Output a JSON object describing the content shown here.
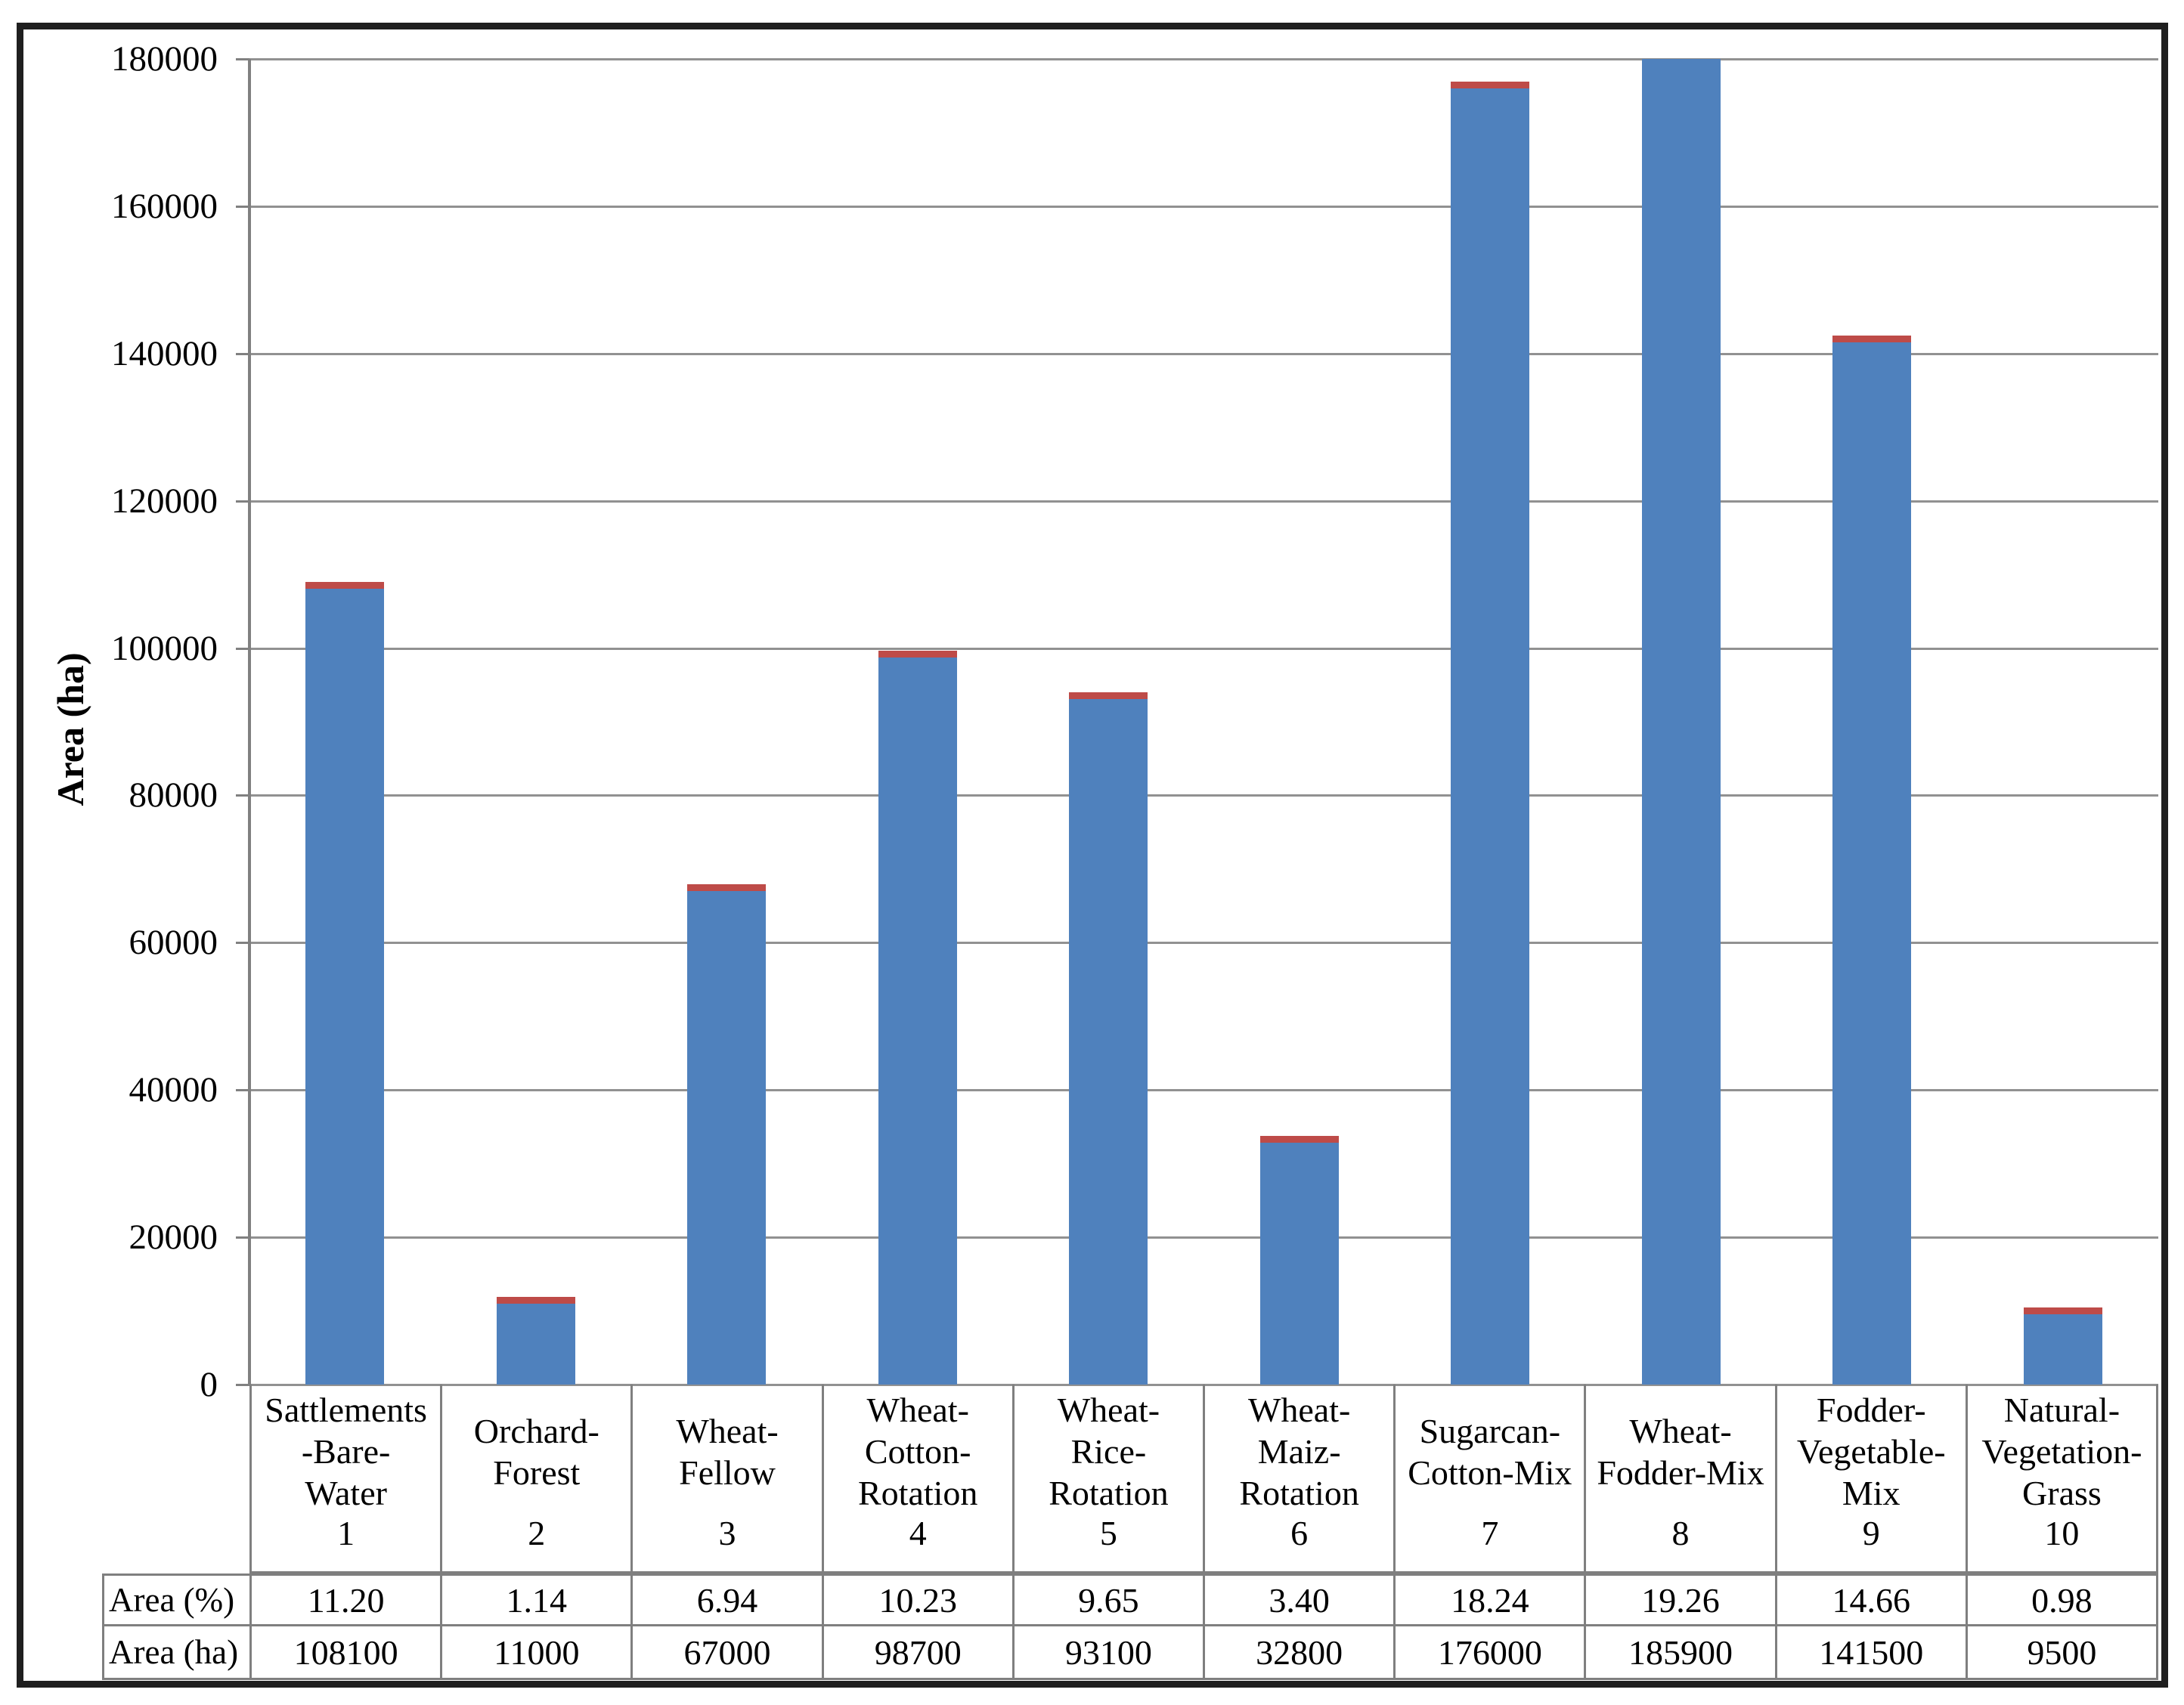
{
  "chart_data": {
    "type": "bar",
    "title": "",
    "ylabel": "Area (ha)",
    "xlabel": "",
    "ylim": [
      0,
      180000
    ],
    "ytick_step": 20000,
    "ytick_labels": [
      "180000",
      "160000",
      "140000",
      "120000",
      "100000",
      "80000",
      "60000",
      "40000",
      "20000",
      "0"
    ],
    "grid": true,
    "legend": "none",
    "categories": [
      {
        "lines": [
          "Sattlements",
          "-Bare-",
          "Water"
        ],
        "number": "1"
      },
      {
        "lines": [
          "Orchard-",
          "Forest"
        ],
        "number": "2"
      },
      {
        "lines": [
          "Wheat-",
          "Fellow"
        ],
        "number": "3"
      },
      {
        "lines": [
          "Wheat-",
          "Cotton-",
          "Rotation"
        ],
        "number": "4"
      },
      {
        "lines": [
          "Wheat-",
          "Rice-",
          "Rotation"
        ],
        "number": "5"
      },
      {
        "lines": [
          "Wheat-",
          "Maiz-",
          "Rotation"
        ],
        "number": "6"
      },
      {
        "lines": [
          "Sugarcan-",
          "Cotton-Mix"
        ],
        "number": "7"
      },
      {
        "lines": [
          "Wheat-",
          "Fodder-Mix"
        ],
        "number": "8"
      },
      {
        "lines": [
          "Fodder-",
          "Vegetable-",
          "Mix"
        ],
        "number": "9"
      },
      {
        "lines": [
          "Natural-",
          "Vegetation-",
          "Grass"
        ],
        "number": "10"
      }
    ],
    "series": [
      {
        "name": "Area (ha)",
        "values": [
          108100,
          11000,
          67000,
          98700,
          93100,
          32800,
          176000,
          185900,
          141500,
          9500
        ],
        "color": "#4F81BD"
      },
      {
        "name": "top-cap",
        "description": "thin red segment capping the top of each bar that fits inside the axis",
        "color": "#BE4B48"
      }
    ],
    "table": {
      "rows": [
        {
          "header": "Area (%)",
          "values": [
            "11.20",
            "1.14",
            "6.94",
            "10.23",
            "9.65",
            "3.40",
            "18.24",
            "19.26",
            "14.66",
            "0.98"
          ]
        },
        {
          "header": "Area (ha)",
          "values": [
            "108100",
            "11000",
            "67000",
            "98700",
            "93100",
            "32800",
            "176000",
            "185900",
            "141500",
            "9500"
          ]
        }
      ]
    },
    "colors": {
      "bar": "#4F81BD",
      "cap": "#BE4B48",
      "gridline": "#919191",
      "axis": "#808080",
      "table_border": "#7F7F7F",
      "figure_border": "#1F1F1F",
      "text": "#000000",
      "background": "#FFFFFF"
    }
  }
}
